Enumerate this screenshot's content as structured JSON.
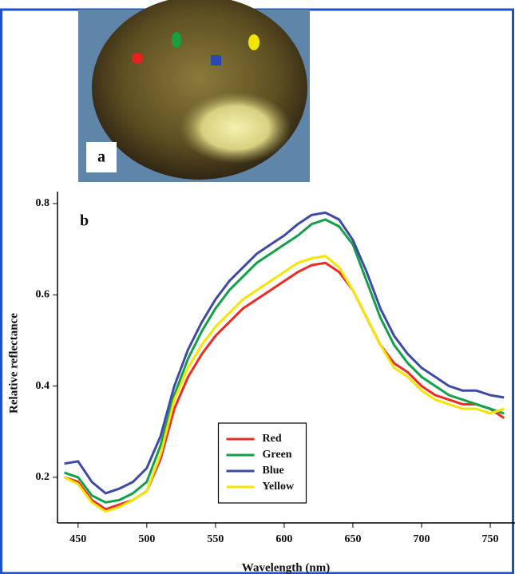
{
  "photo": {
    "label": "a"
  },
  "chart_data": {
    "type": "line",
    "panel_label": "b",
    "x_label": "Wavelength (nm)",
    "y_label": "Relative reflectance",
    "x": [
      440,
      450,
      460,
      470,
      480,
      490,
      500,
      510,
      520,
      530,
      540,
      550,
      560,
      570,
      580,
      590,
      600,
      610,
      620,
      630,
      640,
      650,
      660,
      670,
      680,
      690,
      700,
      710,
      720,
      730,
      740,
      750,
      760
    ],
    "series": [
      {
        "name": "Red",
        "color": "#ee2a24",
        "values": [
          0.2,
          0.19,
          0.15,
          0.13,
          0.14,
          0.15,
          0.17,
          0.24,
          0.35,
          0.42,
          0.47,
          0.51,
          0.54,
          0.57,
          0.59,
          0.61,
          0.63,
          0.65,
          0.665,
          0.67,
          0.65,
          0.61,
          0.55,
          0.49,
          0.45,
          0.43,
          0.4,
          0.38,
          0.37,
          0.36,
          0.36,
          0.35,
          0.33
        ]
      },
      {
        "name": "Green",
        "color": "#13a04a",
        "values": [
          0.21,
          0.2,
          0.16,
          0.145,
          0.15,
          0.165,
          0.19,
          0.27,
          0.38,
          0.46,
          0.52,
          0.57,
          0.61,
          0.64,
          0.67,
          0.69,
          0.71,
          0.73,
          0.755,
          0.765,
          0.75,
          0.71,
          0.63,
          0.55,
          0.49,
          0.45,
          0.42,
          0.4,
          0.38,
          0.37,
          0.36,
          0.35,
          0.34
        ]
      },
      {
        "name": "Blue",
        "color": "#3f4aa8",
        "values": [
          0.23,
          0.235,
          0.19,
          0.165,
          0.175,
          0.19,
          0.22,
          0.29,
          0.4,
          0.48,
          0.54,
          0.59,
          0.63,
          0.66,
          0.69,
          0.71,
          0.73,
          0.755,
          0.775,
          0.78,
          0.765,
          0.72,
          0.65,
          0.57,
          0.51,
          0.47,
          0.44,
          0.42,
          0.4,
          0.39,
          0.39,
          0.38,
          0.375
        ]
      },
      {
        "name": "Yellow",
        "color": "#f4e600",
        "values": [
          0.2,
          0.185,
          0.145,
          0.125,
          0.135,
          0.15,
          0.17,
          0.25,
          0.37,
          0.44,
          0.49,
          0.53,
          0.56,
          0.59,
          0.61,
          0.63,
          0.65,
          0.67,
          0.68,
          0.685,
          0.66,
          0.61,
          0.55,
          0.49,
          0.44,
          0.42,
          0.39,
          0.37,
          0.36,
          0.35,
          0.35,
          0.34,
          0.35
        ]
      }
    ],
    "xlim": [
      435,
      768
    ],
    "ylim": [
      0.1,
      0.8
    ],
    "xticks": [
      450,
      500,
      550,
      600,
      650,
      700,
      750
    ],
    "yticks": [
      0.2,
      0.4,
      0.6,
      0.8
    ],
    "legend": "lower center"
  }
}
